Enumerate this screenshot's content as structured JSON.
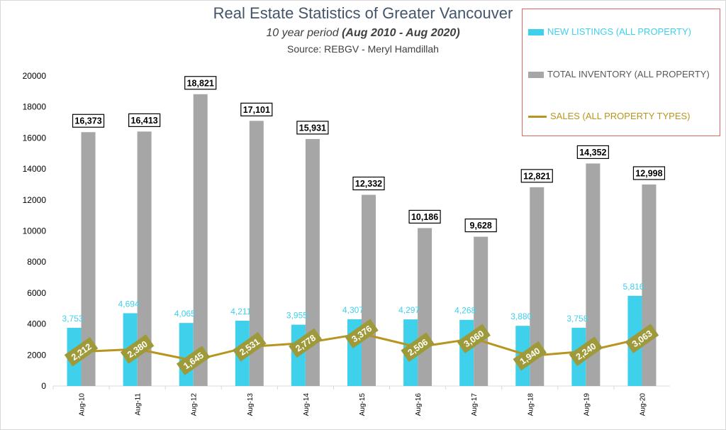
{
  "chart_data": {
    "type": "bar",
    "title": "Real Estate Statistics of Greater Vancouver",
    "subtitle_prefix": "10 year period  ",
    "subtitle_range": "(Aug 2010 - Aug 2020)",
    "source": "Source: REBGV  - Meryl Hamdillah",
    "categories": [
      "Aug-10",
      "Aug-11",
      "Aug-12",
      "Aug-13",
      "Aug-14",
      "Aug-15",
      "Aug-16",
      "Aug-17",
      "Aug-18",
      "Aug-19",
      "Aug-20"
    ],
    "ylim": [
      0,
      20000
    ],
    "yticks": [
      0,
      2000,
      4000,
      6000,
      8000,
      10000,
      12000,
      14000,
      16000,
      18000,
      20000
    ],
    "grid": false,
    "legend_position": "top-right",
    "series": [
      {
        "name": "NEW LISTINGS (ALL PROPERTY)",
        "kind": "bar",
        "color": "#3fd0ec",
        "values": [
          3753,
          4694,
          4065,
          4211,
          3955,
          4307,
          4297,
          4268,
          3880,
          3758,
          5816
        ],
        "labels": [
          "3,753",
          "4,694",
          "4,065",
          "4,211",
          "3,955",
          "4,307",
          "4,297",
          "4,268",
          "3,880",
          "3,758",
          "5,816"
        ]
      },
      {
        "name": "TOTAL INVENTORY (ALL PROPERTY)",
        "kind": "bar",
        "color": "#a6a6a6",
        "values": [
          16373,
          16413,
          18821,
          17101,
          15931,
          12332,
          10186,
          9628,
          12821,
          14352,
          12998
        ],
        "labels": [
          "16,373",
          "16,413",
          "18,821",
          "17,101",
          "15,931",
          "12,332",
          "10,186",
          "9,628",
          "12,821",
          "14,352",
          "12,998"
        ]
      },
      {
        "name": "SALES (ALL PROPERTY TYPES)",
        "kind": "line",
        "color": "#b8951e",
        "values": [
          2212,
          2380,
          1645,
          2531,
          2778,
          3376,
          2506,
          3060,
          1940,
          2240,
          3063
        ],
        "labels": [
          "2,212",
          "2,380",
          "1,645",
          "2,531",
          "2,778",
          "3,376",
          "2,506",
          "3,060",
          "1,940",
          "2,240",
          "3,063"
        ]
      }
    ]
  }
}
